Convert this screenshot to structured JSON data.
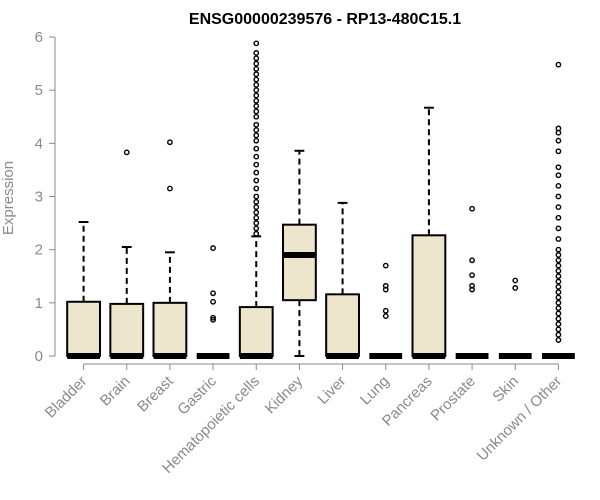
{
  "chart_data": {
    "type": "boxplot",
    "title": "ENSG00000239576 - RP13-480C15.1",
    "xlabel": "",
    "ylabel": "Expression",
    "ylim": [
      0,
      6
    ],
    "yticks": [
      0,
      1,
      2,
      3,
      4,
      5,
      6
    ],
    "colors": {
      "box_fill": "#ede6cd",
      "stroke": "#000000",
      "axis": "#8a8a8a"
    },
    "categories": [
      "Bladder",
      "Brain",
      "Breast",
      "Gastric",
      "Hematopoietic cells",
      "Kidney",
      "Liver",
      "Lung",
      "Pancreas",
      "Prostate",
      "Skin",
      "Unknown / Other"
    ],
    "boxes": [
      {
        "name": "Bladder",
        "q1": 0,
        "median": 0,
        "q3": 1.02,
        "whisker_low": 0,
        "whisker_high": 2.52,
        "outliers": []
      },
      {
        "name": "Brain",
        "q1": 0,
        "median": 0,
        "q3": 0.98,
        "whisker_low": 0,
        "whisker_high": 2.05,
        "outliers": [
          3.83
        ]
      },
      {
        "name": "Breast",
        "q1": 0,
        "median": 0,
        "q3": 1.0,
        "whisker_low": 0,
        "whisker_high": 1.95,
        "outliers": [
          3.15,
          4.02
        ]
      },
      {
        "name": "Gastric",
        "q1": 0,
        "median": 0,
        "q3": 0,
        "whisker_low": 0,
        "whisker_high": 0,
        "outliers": [
          0.68,
          0.72,
          1.02,
          1.18,
          2.03
        ]
      },
      {
        "name": "Hematopoietic cells",
        "q1": 0,
        "median": 0,
        "q3": 0.92,
        "whisker_low": 0,
        "whisker_high": 2.25,
        "outliers": [
          2.3,
          2.4,
          2.5,
          2.6,
          2.7,
          2.8,
          2.9,
          3.0,
          3.15,
          3.3,
          3.45,
          3.6,
          3.75,
          3.9,
          4.05,
          4.15,
          4.25,
          4.35,
          4.5,
          4.6,
          4.7,
          4.8,
          4.9,
          5.0,
          5.1,
          5.2,
          5.3,
          5.4,
          5.5,
          5.6,
          5.7,
          5.88
        ]
      },
      {
        "name": "Kidney",
        "q1": 1.05,
        "median": 1.9,
        "q3": 2.47,
        "whisker_low": 0,
        "whisker_high": 3.86,
        "outliers": []
      },
      {
        "name": "Liver",
        "q1": 0,
        "median": 0,
        "q3": 1.16,
        "whisker_low": 0,
        "whisker_high": 2.88,
        "outliers": []
      },
      {
        "name": "Lung",
        "q1": 0,
        "median": 0,
        "q3": 0,
        "whisker_low": 0,
        "whisker_high": 0,
        "outliers": [
          0.75,
          0.85,
          1.25,
          1.32,
          1.7
        ]
      },
      {
        "name": "Pancreas",
        "q1": 0,
        "median": 0,
        "q3": 2.27,
        "whisker_low": 0,
        "whisker_high": 4.67,
        "outliers": []
      },
      {
        "name": "Prostate",
        "q1": 0,
        "median": 0,
        "q3": 0,
        "whisker_low": 0,
        "whisker_high": 0,
        "outliers": [
          1.25,
          1.32,
          1.52,
          1.8,
          2.77
        ]
      },
      {
        "name": "Skin",
        "q1": 0,
        "median": 0,
        "q3": 0,
        "whisker_low": 0,
        "whisker_high": 0,
        "outliers": [
          1.28,
          1.42
        ]
      },
      {
        "name": "Unknown / Other",
        "q1": 0,
        "median": 0,
        "q3": 0,
        "whisker_low": 0,
        "whisker_high": 0,
        "outliers": [
          0.3,
          0.4,
          0.5,
          0.6,
          0.7,
          0.8,
          0.9,
          1.0,
          1.1,
          1.2,
          1.3,
          1.4,
          1.5,
          1.6,
          1.7,
          1.8,
          1.9,
          2.0,
          2.2,
          2.4,
          2.6,
          2.8,
          3.0,
          3.2,
          3.4,
          3.55,
          3.85,
          4.05,
          4.2,
          4.28,
          5.48
        ]
      }
    ]
  }
}
